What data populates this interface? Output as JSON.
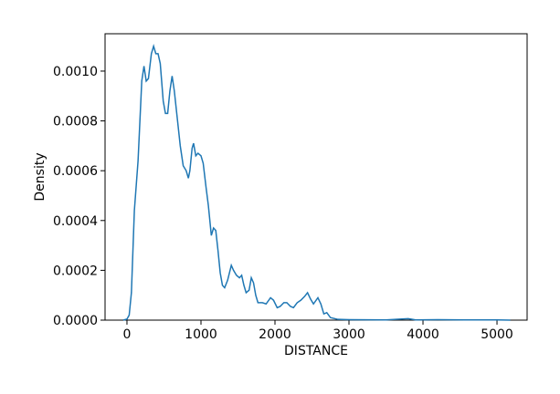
{
  "chart_data": {
    "type": "line",
    "xlabel": "DISTANCE",
    "ylabel": "Density",
    "series": [
      {
        "name": "DISTANCE",
        "color": "#1f77b4",
        "x": [
          -50,
          0,
          30,
          60,
          100,
          150,
          200,
          230,
          260,
          290,
          330,
          360,
          390,
          420,
          450,
          490,
          520,
          550,
          580,
          610,
          640,
          680,
          720,
          760,
          800,
          830,
          850,
          880,
          900,
          930,
          960,
          1000,
          1030,
          1070,
          1100,
          1140,
          1170,
          1200,
          1230,
          1260,
          1290,
          1320,
          1360,
          1410,
          1440,
          1480,
          1520,
          1550,
          1580,
          1610,
          1650,
          1680,
          1710,
          1740,
          1770,
          1830,
          1880,
          1940,
          1980,
          2030,
          2070,
          2120,
          2160,
          2210,
          2250,
          2300,
          2350,
          2400,
          2440,
          2480,
          2520,
          2580,
          2620,
          2660,
          2700,
          2750,
          2850,
          3000,
          3500,
          3800,
          3900,
          4200,
          4600,
          5000,
          5180
        ],
        "values": [
          0,
          4e-06,
          2e-05,
          0.00011,
          0.00044,
          0.00064,
          0.00096,
          0.00102,
          0.00096,
          0.00097,
          0.00107,
          0.0011,
          0.00107,
          0.00107,
          0.00103,
          0.00088,
          0.00083,
          0.00083,
          0.00092,
          0.00098,
          0.00092,
          0.00081,
          0.0007,
          0.00062,
          0.0006,
          0.00057,
          0.0006,
          0.00069,
          0.00071,
          0.00066,
          0.00067,
          0.00066,
          0.00063,
          0.00053,
          0.00046,
          0.00034,
          0.00037,
          0.00036,
          0.00028,
          0.00019,
          0.00014,
          0.00013,
          0.00016,
          0.00022,
          0.0002,
          0.00018,
          0.00017,
          0.00018,
          0.00014,
          0.00011,
          0.00012,
          0.00017,
          0.00015,
          0.0001,
          7e-05,
          7e-05,
          6.5e-05,
          9e-05,
          8e-05,
          5e-05,
          5.5e-05,
          7e-05,
          7e-05,
          5.5e-05,
          5e-05,
          7e-05,
          8e-05,
          9.5e-05,
          0.00011,
          8.5e-05,
          6.5e-05,
          9e-05,
          6.5e-05,
          2.5e-05,
          3e-05,
          1e-05,
          3e-06,
          2e-06,
          1e-06,
          6e-06,
          1e-06,
          2e-06,
          1e-06,
          1e-06,
          0
        ]
      }
    ],
    "xlim": [
      -296,
      5407
    ],
    "xticks": [
      0,
      1000,
      2000,
      3000,
      4000,
      5000
    ],
    "ylim": [
      0,
      0.00115
    ],
    "yticks": [
      {
        "value": 0,
        "label": "0.0000"
      },
      {
        "value": 0.0002,
        "label": "0.0002"
      },
      {
        "value": 0.0004,
        "label": "0.0004"
      },
      {
        "value": 0.0006,
        "label": "0.0006"
      },
      {
        "value": 0.0008,
        "label": "0.0008"
      },
      {
        "value": 0.001,
        "label": "0.0010"
      }
    ]
  }
}
